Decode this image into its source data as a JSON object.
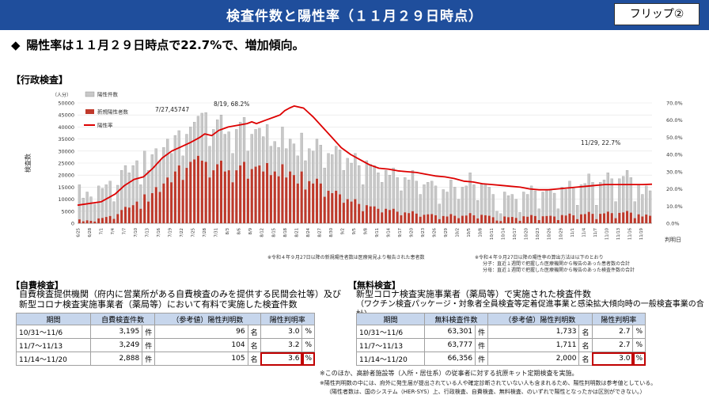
{
  "header": {
    "title": "検査件数と陽性率（１１月２９日時点）",
    "flip_label": "フリップ②"
  },
  "headline": "陽性率は１１月２９日時点で22.7%で、増加傾向。",
  "admin_section_label": "【行政検査】",
  "chart_notes": {
    "left": "※令和４年９月27日以降の新規陽性者数は医療発見より報告された患者数",
    "right_1": "※令和４年９月27日以降の陽性率の算出方法は以下のとおり",
    "right_2": "分子：直近１週間で把握した医療機関から報告のあった患者数の合計",
    "right_3": "分母：直近１週間で把握した医療機関から報告のあった検査件数の合計"
  },
  "chart_data": {
    "type": "bar",
    "y_unit": "（人分）",
    "ylabel": "検査数",
    "xlabel": "判明日",
    "ylim": [
      0,
      50000
    ],
    "y2lim": [
      0,
      70
    ],
    "y_ticks": [
      "0",
      "5000",
      "10000",
      "15000",
      "20000",
      "25000",
      "30000",
      "35000",
      "40000",
      "45000",
      "50000"
    ],
    "y2_ticks": [
      "0.0%",
      "10.0%",
      "20.0%",
      "30.0%",
      "40.0%",
      "50.0%",
      "60.0%",
      "70.0%"
    ],
    "x_tick_labels": [
      "6/25",
      "6/28",
      "7/1",
      "7/4",
      "7/7",
      "7/10",
      "7/13",
      "7/16",
      "7/19",
      "7/22",
      "7/25",
      "7/28",
      "7/31",
      "8/3",
      "8/6",
      "8/9",
      "8/12",
      "8/15",
      "8/18",
      "8/21",
      "8/24",
      "8/27",
      "8/30",
      "9/2",
      "9/5",
      "9/8",
      "9/11",
      "9/14",
      "9/17",
      "9/20",
      "9/23",
      "9/26",
      "9/29",
      "10/2",
      "10/5",
      "10/8",
      "10/11",
      "10/14",
      "10/17",
      "10/20",
      "10/23",
      "10/26",
      "10/29",
      "11/1",
      "11/4",
      "11/7",
      "11/10",
      "11/13",
      "11/16",
      "11/19",
      "11/22",
      "11/25",
      "11/28"
    ],
    "legend": [
      {
        "name": "陽性件数",
        "color": "#c8c8c8"
      },
      {
        "name": "新規陽性者数",
        "color": "#c0392b"
      },
      {
        "name": "陽性率",
        "color": "#dd0000"
      }
    ],
    "annotations": [
      {
        "text": "7/27,45747"
      },
      {
        "text": "8/19, 68.2%"
      },
      {
        "text": "11/29, 22.7%"
      }
    ],
    "series": [
      {
        "name": "陽性件数",
        "values": [
          16000,
          10500,
          13000,
          11000,
          8000,
          15500,
          14500,
          16000,
          17500,
          9000,
          15800,
          22000,
          24000,
          21000,
          24000,
          26000,
          16000,
          30000,
          22000,
          28500,
          31000,
          26000,
          31500,
          35000,
          29000,
          36500,
          38500,
          28000,
          37000,
          40000,
          42000,
          44500,
          45747,
          46000,
          32000,
          39000,
          43000,
          45000,
          37000,
          38000,
          29000,
          39000,
          42000,
          44000,
          30000,
          37000,
          39000,
          39500,
          36000,
          41000,
          32000,
          34000,
          31500,
          40000,
          31000,
          35000,
          33000,
          28000,
          37500,
          26000,
          31000,
          30000,
          35000,
          32500,
          23000,
          29000,
          28500,
          32000,
          30500,
          22000,
          27000,
          25000,
          29000,
          24000,
          16000,
          26000,
          24500,
          24000,
          21000,
          17000,
          22000,
          20000,
          23000,
          19000,
          13500,
          19000,
          18000,
          22000,
          17500,
          12000,
          16000,
          17000,
          17500,
          15500,
          8000,
          14000,
          13000,
          18000,
          15000,
          10000,
          15000,
          15500,
          21000,
          16000,
          9500,
          16500,
          16000,
          15000,
          12000,
          5000,
          4000,
          13000,
          11500,
          12000,
          10000,
          4500,
          13000,
          12000,
          15500,
          13500,
          6000,
          13000,
          13500,
          14000,
          12500,
          6000,
          15000,
          14000,
          17500,
          14500,
          7500,
          16000,
          16500,
          20500,
          17000,
          7500,
          17000,
          18000,
          21000,
          18500,
          9000,
          18500,
          19500,
          22000,
          19000,
          9000,
          16000,
          12000,
          15500,
          13500
        ],
        "color": "#c8c8c8"
      },
      {
        "name": "新規陽性者数",
        "values": [
          1600,
          800,
          1200,
          1000,
          700,
          2000,
          2200,
          2600,
          3000,
          1800,
          3800,
          5500,
          6800,
          6500,
          7500,
          9000,
          6000,
          12000,
          9000,
          12500,
          15000,
          13000,
          16500,
          19000,
          17000,
          21500,
          24000,
          18000,
          23000,
          25500,
          26500,
          28000,
          26000,
          25500,
          19000,
          22000,
          24500,
          26000,
          21500,
          22000,
          17000,
          22000,
          24000,
          25500,
          18500,
          22500,
          23500,
          24000,
          21500,
          25000,
          20000,
          21500,
          19500,
          24500,
          19000,
          21500,
          20000,
          16500,
          21500,
          14000,
          17500,
          16500,
          18500,
          16500,
          11000,
          13500,
          12500,
          13500,
          12000,
          8500,
          10000,
          9000,
          10000,
          8000,
          5000,
          7500,
          7000,
          7000,
          6000,
          4500,
          6000,
          5500,
          6000,
          4800,
          3300,
          4500,
          4200,
          5000,
          4000,
          2700,
          3500,
          3700,
          3800,
          3300,
          1700,
          3000,
          2800,
          3800,
          3100,
          2100,
          3100,
          3200,
          4200,
          3300,
          2000,
          3500,
          3300,
          3100,
          2500,
          1100,
          900,
          2800,
          2500,
          2600,
          2200,
          1000,
          2900,
          2700,
          3400,
          3000,
          1300,
          2900,
          3000,
          3100,
          2800,
          1300,
          3400,
          3200,
          4000,
          3300,
          1700,
          3700,
          3800,
          4700,
          3900,
          1700,
          3900,
          4100,
          4800,
          4200,
          2100,
          4300,
          4500,
          5100,
          4400,
          2100,
          3700,
          2800,
          3600,
          3100
        ],
        "color": "#c0392b"
      },
      {
        "name": "陽性率",
        "values": [
          [
            0,
            10.5
          ],
          [
            10,
            12.5
          ],
          [
            16,
            17
          ],
          [
            20,
            22
          ],
          [
            24,
            25.5
          ],
          [
            28,
            27
          ],
          [
            32,
            32
          ],
          [
            36,
            38
          ],
          [
            40,
            42
          ],
          [
            44,
            44.5
          ],
          [
            48,
            47
          ],
          [
            52,
            50
          ],
          [
            54,
            52
          ],
          [
            57,
            51
          ],
          [
            60,
            54
          ],
          [
            64,
            56
          ],
          [
            68,
            57
          ],
          [
            72,
            58
          ],
          [
            74,
            59
          ],
          [
            76,
            58
          ],
          [
            80,
            60
          ],
          [
            84,
            62
          ],
          [
            86,
            63
          ],
          [
            88,
            65.5
          ],
          [
            90,
            67
          ],
          [
            92,
            68.2
          ],
          [
            96,
            67
          ],
          [
            100,
            62
          ],
          [
            104,
            56
          ],
          [
            108,
            50
          ],
          [
            112,
            44
          ],
          [
            116,
            40
          ],
          [
            120,
            37
          ],
          [
            124,
            34
          ],
          [
            128,
            32
          ],
          [
            132,
            31.5
          ],
          [
            136,
            30.5
          ],
          [
            140,
            30
          ],
          [
            144,
            29.5
          ],
          [
            148,
            28.5
          ],
          [
            152,
            27.5
          ],
          [
            156,
            27
          ],
          [
            160,
            26
          ],
          [
            164,
            24.5
          ],
          [
            168,
            24
          ],
          [
            172,
            23
          ],
          [
            176,
            22.5
          ],
          [
            180,
            22
          ],
          [
            184,
            21.5
          ],
          [
            188,
            21
          ],
          [
            192,
            20
          ],
          [
            196,
            19.5
          ],
          [
            200,
            19.5
          ],
          [
            204,
            20
          ],
          [
            208,
            20.5
          ],
          [
            212,
            21
          ],
          [
            216,
            21.5
          ],
          [
            220,
            22
          ],
          [
            224,
            22.5
          ],
          [
            228,
            22.5
          ],
          [
            232,
            22.5
          ],
          [
            236,
            22.5
          ],
          [
            240,
            22.5
          ],
          [
            244,
            22.7
          ]
        ],
        "color": "#dd0000"
      }
    ]
  },
  "self_pay": {
    "label": "【自費検査】",
    "desc_1": "自費検査提供機関（府内に営業所がある自費検査のみを提供する民間会社等）及び",
    "desc_2": "新型コロナ検査実施事業者（薬局等）において有料で実施した検査件数",
    "headers": [
      "期間",
      "自費検査件数",
      "（参考値）陽性判明数",
      "陽性判明率"
    ],
    "rows": [
      {
        "period": "10/31～11/6",
        "count": "3,195",
        "count_unit": "件",
        "positive": "96",
        "positive_unit": "名",
        "rate": "3.0",
        "rate_unit": "%"
      },
      {
        "period": "11/7～11/13",
        "count": "3,249",
        "count_unit": "件",
        "positive": "104",
        "positive_unit": "名",
        "rate": "3.2",
        "rate_unit": "%"
      },
      {
        "period": "11/14～11/20",
        "count": "2,888",
        "count_unit": "件",
        "positive": "105",
        "positive_unit": "名",
        "rate": "3.6",
        "rate_unit": "%"
      }
    ]
  },
  "free": {
    "label": "【無料検査】",
    "desc_1": "新型コロナ検査実施事業者（薬局等）で実施された検査件数",
    "desc_2": "（ワクチン検査パッケージ・対象者全員検査等定着促進事業と感染拡大傾向時の一般検査事業の合計）",
    "headers": [
      "期間",
      "無料検査件数",
      "（参考値）陽性判明数",
      "陽性判明率"
    ],
    "rows": [
      {
        "period": "10/31～11/6",
        "count": "63,301",
        "count_unit": "件",
        "positive": "1,733",
        "positive_unit": "名",
        "rate": "2.7",
        "rate_unit": "%"
      },
      {
        "period": "11/7～11/13",
        "count": "63,777",
        "count_unit": "件",
        "positive": "1,711",
        "positive_unit": "名",
        "rate": "2.7",
        "rate_unit": "%"
      },
      {
        "period": "11/14～11/20",
        "count": "66,356",
        "count_unit": "件",
        "positive": "2,000",
        "positive_unit": "名",
        "rate": "3.0",
        "rate_unit": "%"
      }
    ]
  },
  "footnotes": {
    "line_1": "※このほか、高齢者施設等（入所・居住系）の従事者に対する抗原キット定期検査を実施。",
    "line_2": "※陽性判明数の中には、府外に発生届が提出されている人や確定診断されていない人も含まれるため、陽性判明数は参考値としている。",
    "line_3": "（陽性者数は、国のシステム（HER-SYS）上、行政検査、自費検査、無料検査、のいずれで陽性となったかは区別ができない。）"
  }
}
